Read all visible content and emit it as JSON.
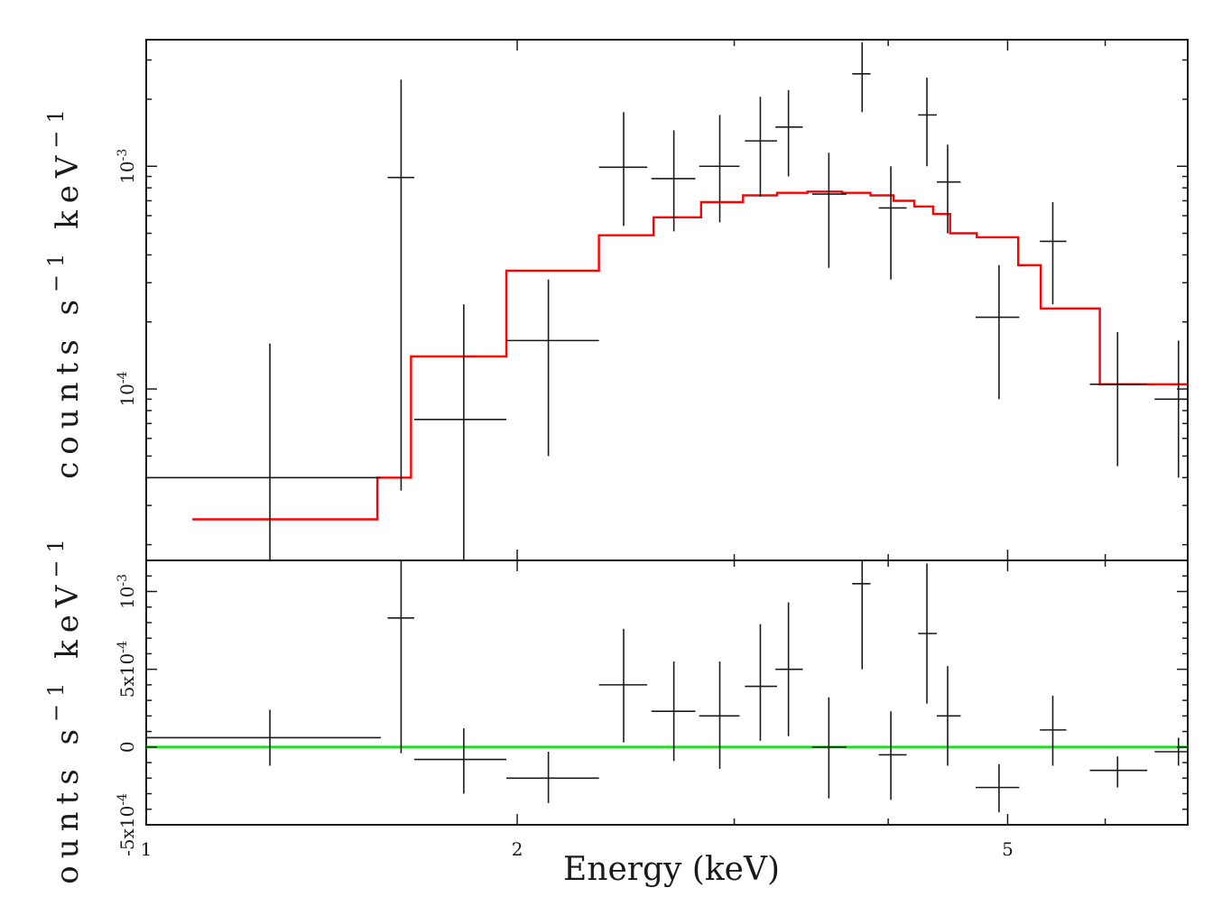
{
  "chart_data": {
    "type": "spectrum-with-residuals",
    "x_scale": "log",
    "xlim": [
      1.0,
      7.0
    ],
    "xlabel": "Energy (keV)",
    "x_tick_labels": [
      {
        "value": 1,
        "label": "1"
      },
      {
        "value": 2,
        "label": "2"
      },
      {
        "value": 5,
        "label": "5"
      }
    ],
    "top_panel": {
      "ylabel_parts": [
        "counts s",
        "−1",
        " keV",
        "−1"
      ],
      "y_scale": "log",
      "ylim": [
        1.7e-05,
        0.0037
      ],
      "y_tick_labels": [
        {
          "value": 0.0001,
          "base": "10",
          "exp": "-4"
        },
        {
          "value": 0.001,
          "base": "10",
          "exp": "-3"
        }
      ],
      "data": [
        {
          "x": 1.26,
          "xlo": 1.0,
          "xhi": 1.55,
          "y": 4e-05,
          "ylo": 1.7e-05,
          "yhi": 0.00016
        },
        {
          "x": 1.61,
          "xlo": 1.57,
          "xhi": 1.65,
          "y": 0.00089,
          "ylo": 3.5e-05,
          "yhi": 0.00245
        },
        {
          "x": 1.81,
          "xlo": 1.65,
          "xhi": 1.96,
          "y": 7.3e-05,
          "ylo": 1.7e-05,
          "yhi": 0.00024
        },
        {
          "x": 2.12,
          "xlo": 1.96,
          "xhi": 2.33,
          "y": 0.000165,
          "ylo": 5e-05,
          "yhi": 0.00031
        },
        {
          "x": 2.44,
          "xlo": 2.33,
          "xhi": 2.55,
          "y": 0.00099,
          "ylo": 0.00054,
          "yhi": 0.00175
        },
        {
          "x": 2.68,
          "xlo": 2.57,
          "xhi": 2.79,
          "y": 0.00088,
          "ylo": 0.00051,
          "yhi": 0.00145
        },
        {
          "x": 2.92,
          "xlo": 2.81,
          "xhi": 3.03,
          "y": 0.001,
          "ylo": 0.00056,
          "yhi": 0.0017
        },
        {
          "x": 3.15,
          "xlo": 3.06,
          "xhi": 3.25,
          "y": 0.0013,
          "ylo": 0.00073,
          "yhi": 0.00205
        },
        {
          "x": 3.32,
          "xlo": 3.24,
          "xhi": 3.41,
          "y": 0.0015,
          "ylo": 0.0009,
          "yhi": 0.0022
        },
        {
          "x": 3.58,
          "xlo": 3.47,
          "xhi": 3.7,
          "y": 0.00075,
          "ylo": 0.00035,
          "yhi": 0.00115
        },
        {
          "x": 3.81,
          "xlo": 3.74,
          "xhi": 3.87,
          "y": 0.0026,
          "ylo": 0.00175,
          "yhi": 0.0036
        },
        {
          "x": 4.02,
          "xlo": 3.93,
          "xhi": 4.14,
          "y": 0.00065,
          "ylo": 0.00031,
          "yhi": 0.001
        },
        {
          "x": 4.3,
          "xlo": 4.23,
          "xhi": 4.38,
          "y": 0.0017,
          "ylo": 0.001,
          "yhi": 0.0025
        },
        {
          "x": 4.47,
          "xlo": 4.38,
          "xhi": 4.58,
          "y": 0.00085,
          "ylo": 0.0005,
          "yhi": 0.00125
        },
        {
          "x": 4.92,
          "xlo": 4.71,
          "xhi": 5.11,
          "y": 0.00021,
          "ylo": 9e-05,
          "yhi": 0.00036
        },
        {
          "x": 5.44,
          "xlo": 5.31,
          "xhi": 5.58,
          "y": 0.00046,
          "ylo": 0.00024,
          "yhi": 0.00069
        },
        {
          "x": 6.14,
          "xlo": 5.83,
          "xhi": 6.49,
          "y": 0.000105,
          "ylo": 4.5e-05,
          "yhi": 0.00018
        },
        {
          "x": 6.88,
          "xlo": 6.58,
          "xhi": 7.0,
          "y": 9e-05,
          "ylo": 4e-05,
          "yhi": 0.000165
        }
      ],
      "model": {
        "name": "model",
        "color": "#ff0000",
        "edges": [
          1.09,
          1.54,
          1.64,
          1.96,
          2.33,
          2.58,
          2.82,
          3.05,
          3.25,
          3.44,
          3.67,
          3.87,
          4.04,
          4.2,
          4.35,
          4.49,
          4.72,
          5.1,
          5.32,
          5.94,
          7.0
        ],
        "values": [
          2.6e-05,
          4e-05,
          0.00014,
          0.00034,
          0.00049,
          0.00059,
          0.00069,
          0.00074,
          0.00076,
          0.00077,
          0.00076,
          0.00074,
          0.0007,
          0.00066,
          0.00061,
          0.0005,
          0.00048,
          0.00036,
          0.00023,
          0.000105
        ]
      }
    },
    "bottom_panel": {
      "ylabel_parts": [
        "counts s",
        "−1",
        " keV",
        "−1"
      ],
      "y_scale": "linear",
      "ylim": [
        -0.0005,
        0.0012
      ],
      "y_tick_labels": [
        {
          "value": -0.0005,
          "text": "-5x10",
          "exp": "-4"
        },
        {
          "value": 0,
          "text": "0",
          "exp": ""
        },
        {
          "value": 0.0005,
          "text": "5x10",
          "exp": "-4"
        },
        {
          "value": 0.001,
          "text": "10",
          "exp": "-3"
        }
      ],
      "zero_line_color": "#22dd22",
      "data": [
        {
          "x": 1.26,
          "xlo": 1.0,
          "xhi": 1.55,
          "y": 6e-05,
          "ylo": -0.00012,
          "yhi": 0.00024
        },
        {
          "x": 1.61,
          "xlo": 1.57,
          "xhi": 1.65,
          "y": 0.00083,
          "ylo": -4e-05,
          "yhi": 0.0012
        },
        {
          "x": 1.81,
          "xlo": 1.65,
          "xhi": 1.96,
          "y": -8e-05,
          "ylo": -0.0003,
          "yhi": 0.00012
        },
        {
          "x": 2.12,
          "xlo": 1.96,
          "xhi": 2.33,
          "y": -0.0002,
          "ylo": -0.00036,
          "yhi": -3e-05
        },
        {
          "x": 2.44,
          "xlo": 2.33,
          "xhi": 2.55,
          "y": 0.0004,
          "ylo": 3e-05,
          "yhi": 0.00076
        },
        {
          "x": 2.68,
          "xlo": 2.57,
          "xhi": 2.79,
          "y": 0.00023,
          "ylo": -9e-05,
          "yhi": 0.00055
        },
        {
          "x": 2.92,
          "xlo": 2.81,
          "xhi": 3.03,
          "y": 0.0002,
          "ylo": -0.00014,
          "yhi": 0.00055
        },
        {
          "x": 3.15,
          "xlo": 3.06,
          "xhi": 3.25,
          "y": 0.00039,
          "ylo": 4e-05,
          "yhi": 0.00079
        },
        {
          "x": 3.32,
          "xlo": 3.24,
          "xhi": 3.41,
          "y": 0.0005,
          "ylo": 7e-05,
          "yhi": 0.00093
        },
        {
          "x": 3.58,
          "xlo": 3.47,
          "xhi": 3.7,
          "y": 0.0,
          "ylo": -0.00033,
          "yhi": 0.00032
        },
        {
          "x": 3.81,
          "xlo": 3.74,
          "xhi": 3.87,
          "y": 0.00105,
          "ylo": 0.0005,
          "yhi": 0.0012
        },
        {
          "x": 4.02,
          "xlo": 3.93,
          "xhi": 4.14,
          "y": -5e-05,
          "ylo": -0.00034,
          "yhi": 0.00023
        },
        {
          "x": 4.3,
          "xlo": 4.23,
          "xhi": 4.38,
          "y": 0.00073,
          "ylo": 0.00028,
          "yhi": 0.00118
        },
        {
          "x": 4.47,
          "xlo": 4.38,
          "xhi": 4.58,
          "y": 0.0002,
          "ylo": -0.00012,
          "yhi": 0.00052
        },
        {
          "x": 4.92,
          "xlo": 4.71,
          "xhi": 5.11,
          "y": -0.00026,
          "ylo": -0.00042,
          "yhi": -0.00011
        },
        {
          "x": 5.44,
          "xlo": 5.31,
          "xhi": 5.58,
          "y": 0.00011,
          "ylo": -0.00012,
          "yhi": 0.00033
        },
        {
          "x": 6.14,
          "xlo": 5.83,
          "xhi": 6.49,
          "y": -0.00015,
          "ylo": -0.00026,
          "yhi": -6e-05
        },
        {
          "x": 6.88,
          "xlo": 6.58,
          "xhi": 7.0,
          "y": -3e-05,
          "ylo": -0.00012,
          "yhi": 6e-05
        }
      ]
    }
  }
}
